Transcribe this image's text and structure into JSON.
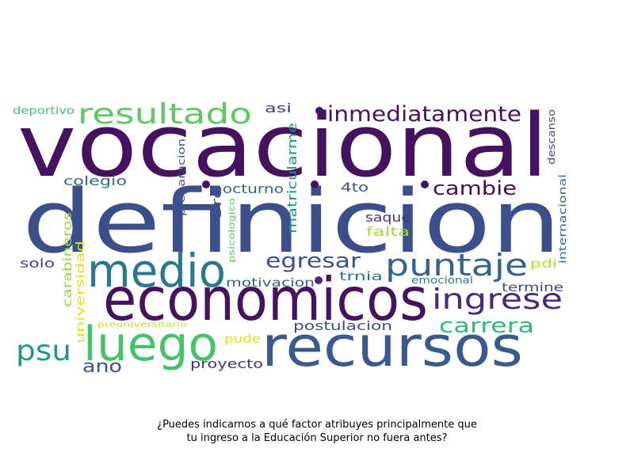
{
  "caption": {
    "line1": "¿Puedes indicarnos a qué factor atribuyes principalmente que",
    "line2": "tu ingreso a la Educación Superior no fuera antes?"
  },
  "palette": {
    "purple": "#45125f",
    "indigo": "#3c4f8a",
    "blue": "#35608d",
    "teal": "#2a788e",
    "green_teal": "#1f988b",
    "green": "#47c16e",
    "light_green": "#8fd744",
    "yellow": "#e2e418",
    "dark_indigo": "#482878"
  },
  "words": [
    {
      "text": "vocacional",
      "color": "#45125f"
    },
    {
      "text": "definicion",
      "color": "#3c4f8a"
    },
    {
      "text": "economicos",
      "color": "#46135f"
    },
    {
      "text": "recursos",
      "color": "#3b5a8c"
    },
    {
      "text": "luego",
      "color": "#47c16e"
    },
    {
      "text": "medio",
      "color": "#2a788e"
    },
    {
      "text": "puntaje",
      "color": "#33638d"
    },
    {
      "text": "ingrese",
      "color": "#482878"
    },
    {
      "text": "resultado",
      "color": "#5ec962"
    },
    {
      "text": "inmediatamente",
      "color": "#45125f"
    },
    {
      "text": "psu",
      "color": "#1f988b"
    },
    {
      "text": "egresar",
      "color": "#3b518b"
    },
    {
      "text": "carrera",
      "color": "#35b779"
    },
    {
      "text": "cambie",
      "color": "#440e57"
    },
    {
      "text": "ano",
      "color": "#3b528b"
    },
    {
      "text": "proyecto",
      "color": "#46327e"
    },
    {
      "text": "postulacion",
      "color": "#3e4a89"
    },
    {
      "text": "nocturno",
      "color": "#31688e"
    },
    {
      "text": "motivacion",
      "color": "#33638d"
    },
    {
      "text": "colegio",
      "color": "#31688e"
    },
    {
      "text": "saque",
      "color": "#46337f"
    },
    {
      "text": "falta",
      "color": "#a5db36"
    },
    {
      "text": "solo",
      "color": "#414487"
    },
    {
      "text": "asi",
      "color": "#443983"
    },
    {
      "text": "4to",
      "color": "#3b528b"
    },
    {
      "text": "trnia",
      "color": "#2c728e"
    },
    {
      "text": "termine",
      "color": "#3e4989"
    },
    {
      "text": "pdi",
      "color": "#b5de2b"
    },
    {
      "text": "emocional",
      "color": "#2a788e"
    },
    {
      "text": "pude",
      "color": "#e2e418"
    },
    {
      "text": "deportivo",
      "color": "#48c16e"
    },
    {
      "text": "preuniversitario",
      "color": "#c8e020"
    },
    {
      "text": "carabineros",
      "color": "#8fd744"
    },
    {
      "text": "universidad",
      "color": "#dde318"
    },
    {
      "text": "matricularme",
      "color": "#21918c"
    },
    {
      "text": "preparacion",
      "color": "#3b528b"
    },
    {
      "text": "psicologico",
      "color": "#5ec962"
    },
    {
      "text": "3ro",
      "color": "#3b528b"
    },
    {
      "text": "descanso",
      "color": "#3e4a89"
    },
    {
      "text": "internacional",
      "color": "#31688e"
    }
  ]
}
